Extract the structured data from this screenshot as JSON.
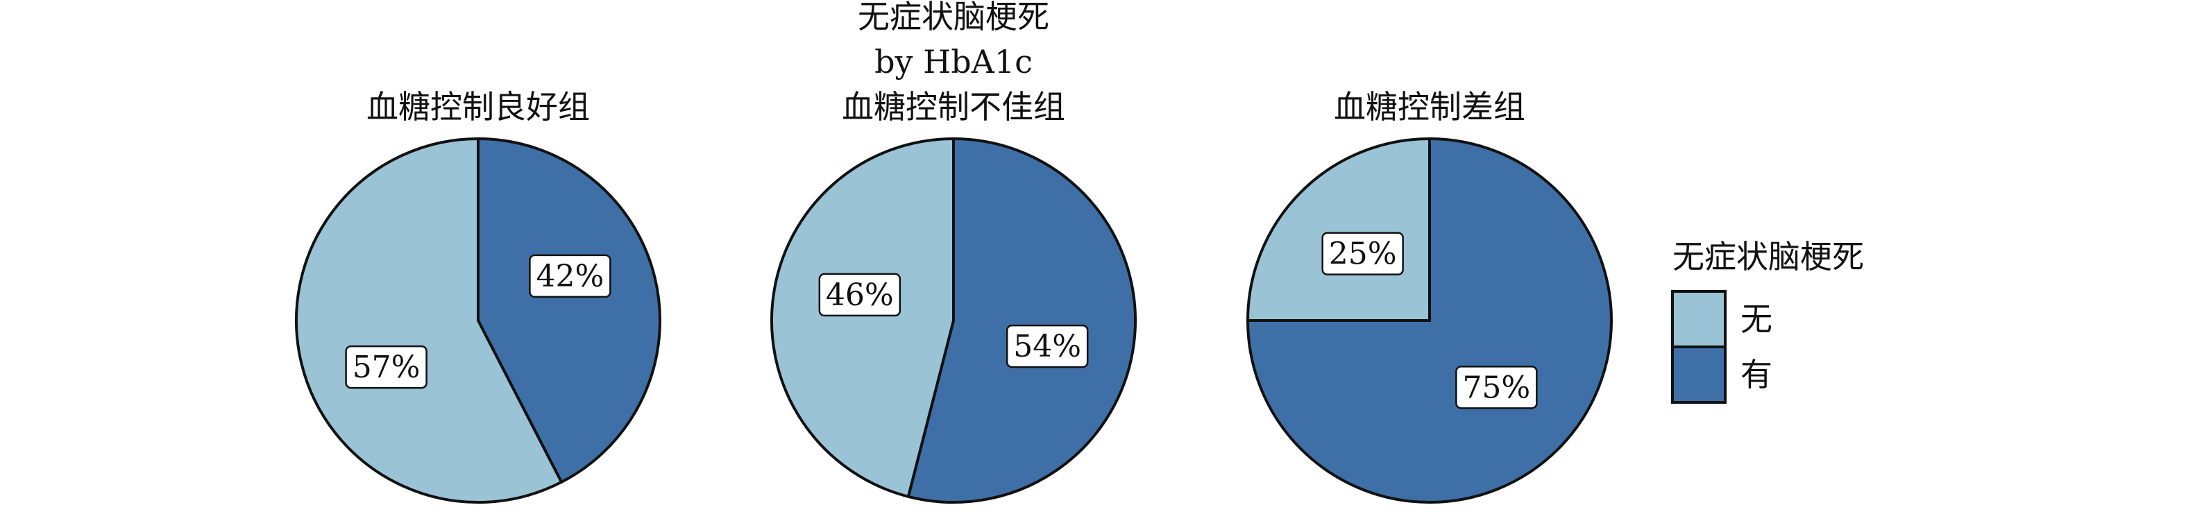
{
  "figure": {
    "title_lines": [
      "无症状脑梗死",
      "by HbA1c"
    ]
  },
  "colors": {
    "无": "#9bc3d6",
    "有": "#3e70a7",
    "outline": "#111111",
    "label_box_fill": "#ffffff"
  },
  "chart_data": {
    "type": "pie",
    "series_order": [
      "无",
      "有"
    ],
    "charts": [
      {
        "title": "血糖控制良好组",
        "slices": [
          {
            "category": "有",
            "value": 42,
            "label": "42%"
          },
          {
            "category": "无",
            "value": 57,
            "label": "57%"
          }
        ]
      },
      {
        "title": "血糖控制不佳组",
        "slices": [
          {
            "category": "有",
            "value": 54,
            "label": "54%"
          },
          {
            "category": "无",
            "value": 46,
            "label": "46%"
          }
        ]
      },
      {
        "title": "血糖控制差组",
        "slices": [
          {
            "category": "有",
            "value": 75,
            "label": "75%"
          },
          {
            "category": "无",
            "value": 25,
            "label": "25%"
          }
        ]
      }
    ],
    "legend": {
      "title": "无症状脑梗死",
      "entries": [
        {
          "category": "无",
          "label": "无"
        },
        {
          "category": "有",
          "label": "有"
        }
      ],
      "placement": "right"
    }
  }
}
